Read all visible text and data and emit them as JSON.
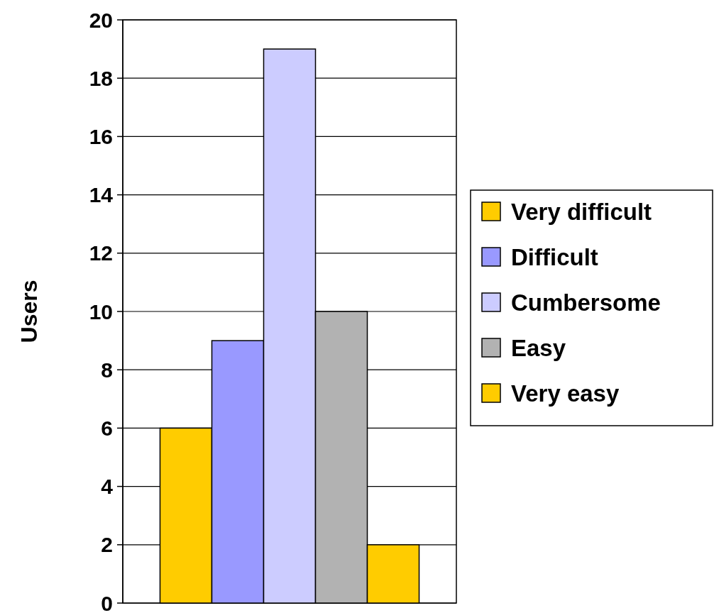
{
  "chart_data": {
    "type": "bar",
    "ylabel": "Users",
    "categories": [
      null
    ],
    "series": [
      {
        "name": "Very difficult",
        "color": "#ffcc00",
        "values": [
          6
        ]
      },
      {
        "name": "Difficult",
        "color": "#9999ff",
        "values": [
          9
        ]
      },
      {
        "name": "Cumbersome",
        "color": "#ccccff",
        "values": [
          19
        ]
      },
      {
        "name": "Easy",
        "color": "#b2b2b2",
        "values": [
          10
        ]
      },
      {
        "name": "Very easy",
        "color": "#ffcc00",
        "values": [
          2
        ]
      }
    ],
    "ylim": [
      0,
      20
    ],
    "yticks": [
      0,
      2,
      4,
      6,
      8,
      10,
      12,
      14,
      16,
      18,
      20
    ],
    "grid": "y",
    "legend": "right"
  }
}
